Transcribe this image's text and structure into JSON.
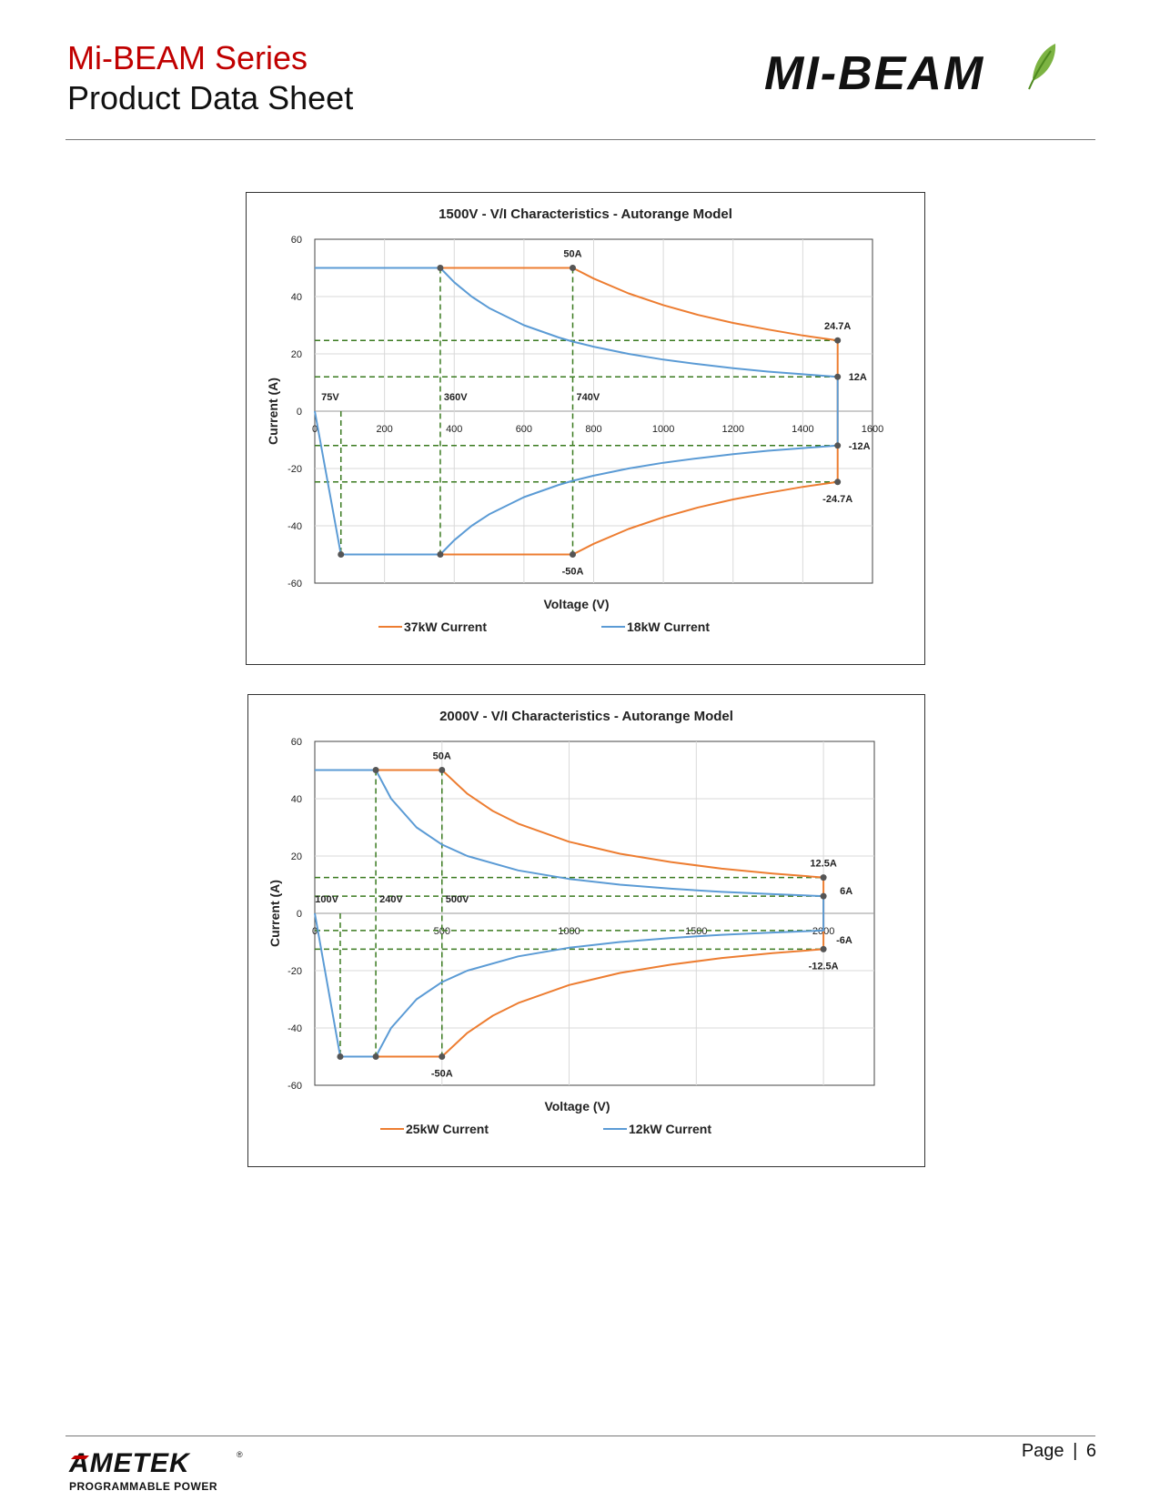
{
  "header": {
    "series_title": "Mi-BEAM Series",
    "document_title": "Product Data Sheet",
    "logo_text": "MI-BEAM"
  },
  "footer": {
    "brand": "AMETEK",
    "brand_sub": "PROGRAMMABLE POWER",
    "registered_mark": "®",
    "page_label": "Page",
    "separator": "|",
    "page_number": "6"
  },
  "colors": {
    "header_red": "#c00000",
    "orange_series": "#ed7d31",
    "blue_series": "#5b9bd5",
    "guide_green": "#3a7a1f",
    "logo_leaf": "#7cb342"
  },
  "chart_data": [
    {
      "type": "line",
      "title": "1500V - V/I Characteristics - Autorange Model",
      "xlabel": "Voltage (V)",
      "ylabel": "Current (A)",
      "xlim": [
        0,
        1600
      ],
      "ylim": [
        -60,
        60
      ],
      "x_ticks": [
        "0",
        "200",
        "400",
        "600",
        "800",
        "1000",
        "1200",
        "1400",
        "1600"
      ],
      "y_ticks": [
        "60",
        "40",
        "20",
        "0",
        "-20",
        "-40",
        "-60"
      ],
      "x_tick_values": [
        0,
        200,
        400,
        600,
        800,
        1000,
        1200,
        1400,
        1600
      ],
      "y_tick_values": [
        60,
        40,
        20,
        0,
        -20,
        -40,
        -60
      ],
      "grid": true,
      "legend_position": "bottom",
      "series": [
        {
          "name": "37kW Current",
          "color": "#ed7d31",
          "points": [
            [
              360,
              50
            ],
            [
              740,
              50
            ],
            [
              800,
              46.3
            ],
            [
              900,
              41.1
            ],
            [
              1000,
              37
            ],
            [
              1100,
              33.6
            ],
            [
              1200,
              30.8
            ],
            [
              1300,
              28.5
            ],
            [
              1400,
              26.4
            ],
            [
              1500,
              24.7
            ],
            [
              1500,
              -24.7
            ],
            [
              1400,
              -26.4
            ],
            [
              1300,
              -28.5
            ],
            [
              1200,
              -30.8
            ],
            [
              1100,
              -33.6
            ],
            [
              1000,
              -37
            ],
            [
              900,
              -41.1
            ],
            [
              800,
              -46.3
            ],
            [
              740,
              -50
            ],
            [
              360,
              -50
            ]
          ]
        },
        {
          "name": "18kW Current",
          "color": "#5b9bd5",
          "points": [
            [
              0,
              50
            ],
            [
              360,
              50
            ],
            [
              400,
              45
            ],
            [
              450,
              40
            ],
            [
              500,
              36
            ],
            [
              600,
              30
            ],
            [
              700,
              25.7
            ],
            [
              740,
              24.3
            ],
            [
              800,
              22.5
            ],
            [
              900,
              20
            ],
            [
              1000,
              18
            ],
            [
              1100,
              16.4
            ],
            [
              1200,
              15
            ],
            [
              1300,
              13.8
            ],
            [
              1400,
              12.9
            ],
            [
              1500,
              12
            ],
            [
              1500,
              -12
            ],
            [
              1400,
              -12.9
            ],
            [
              1300,
              -13.8
            ],
            [
              1200,
              -15
            ],
            [
              1100,
              -16.4
            ],
            [
              1000,
              -18
            ],
            [
              900,
              -20
            ],
            [
              800,
              -22.5
            ],
            [
              740,
              -24.3
            ],
            [
              700,
              -25.7
            ],
            [
              600,
              -30
            ],
            [
              500,
              -36
            ],
            [
              450,
              -40
            ],
            [
              400,
              -45
            ],
            [
              360,
              -50
            ],
            [
              75,
              -50
            ],
            [
              0,
              0
            ]
          ]
        }
      ],
      "guides_h": [
        24.7,
        12,
        -12,
        -24.7
      ],
      "guides_v": [
        {
          "x": 75,
          "from": -50,
          "to": 0
        },
        {
          "x": 360,
          "from": -50,
          "to": 50
        },
        {
          "x": 740,
          "from": -50,
          "to": 50
        }
      ],
      "markers": [
        [
          360,
          50
        ],
        [
          740,
          50
        ],
        [
          1500,
          24.7
        ],
        [
          1500,
          12
        ],
        [
          1500,
          -12
        ],
        [
          1500,
          -24.7
        ],
        [
          740,
          -50
        ],
        [
          360,
          -50
        ],
        [
          75,
          -50
        ]
      ],
      "annotations": [
        {
          "text": "50A",
          "x": 740,
          "y": 50,
          "pos": "above"
        },
        {
          "text": "24.7A",
          "x": 1500,
          "y": 24.7,
          "pos": "above"
        },
        {
          "text": "12A",
          "x": 1500,
          "y": 12,
          "pos": "right"
        },
        {
          "text": "-12A",
          "x": 1500,
          "y": -12,
          "pos": "right"
        },
        {
          "text": "-24.7A",
          "x": 1500,
          "y": -24.7,
          "pos": "below"
        },
        {
          "text": "-50A",
          "x": 740,
          "y": -50,
          "pos": "below"
        },
        {
          "text": "75V",
          "x": 75,
          "y": 0,
          "pos": "above-left"
        },
        {
          "text": "360V",
          "x": 360,
          "y": 0,
          "pos": "above-right"
        },
        {
          "text": "740V",
          "x": 740,
          "y": 0,
          "pos": "above-right"
        }
      ],
      "x_tick_labels_inside": true
    },
    {
      "type": "line",
      "title": "2000V - V/I Characteristics - Autorange Model",
      "xlabel": "Voltage (V)",
      "ylabel": "Current (A)",
      "xlim": [
        0,
        2200
      ],
      "ylim": [
        -60,
        60
      ],
      "x_ticks": [
        "0",
        "500",
        "1000",
        "1500",
        "2000"
      ],
      "y_ticks": [
        "60",
        "40",
        "20",
        "0",
        "-20",
        "-40",
        "-60"
      ],
      "x_tick_values": [
        0,
        500,
        1000,
        1500,
        2000
      ],
      "y_tick_values": [
        60,
        40,
        20,
        0,
        -20,
        -40,
        -60
      ],
      "x_grid_values": [
        500,
        1000,
        1500,
        2000
      ],
      "grid": true,
      "legend_position": "bottom",
      "series": [
        {
          "name": "25kW Current",
          "color": "#ed7d31",
          "points": [
            [
              240,
              50
            ],
            [
              500,
              50
            ],
            [
              600,
              41.7
            ],
            [
              700,
              35.7
            ],
            [
              800,
              31.3
            ],
            [
              1000,
              25
            ],
            [
              1200,
              20.8
            ],
            [
              1400,
              17.9
            ],
            [
              1600,
              15.6
            ],
            [
              1800,
              13.9
            ],
            [
              2000,
              12.5
            ],
            [
              2000,
              -12.5
            ],
            [
              1800,
              -13.9
            ],
            [
              1600,
              -15.6
            ],
            [
              1400,
              -17.9
            ],
            [
              1200,
              -20.8
            ],
            [
              1000,
              -25
            ],
            [
              800,
              -31.3
            ],
            [
              700,
              -35.7
            ],
            [
              600,
              -41.7
            ],
            [
              500,
              -50
            ],
            [
              240,
              -50
            ]
          ]
        },
        {
          "name": "12kW Current",
          "color": "#5b9bd5",
          "points": [
            [
              0,
              50
            ],
            [
              240,
              50
            ],
            [
              300,
              40
            ],
            [
              400,
              30
            ],
            [
              500,
              24
            ],
            [
              600,
              20
            ],
            [
              800,
              15
            ],
            [
              1000,
              12
            ],
            [
              1200,
              10
            ],
            [
              1400,
              8.6
            ],
            [
              1600,
              7.5
            ],
            [
              1800,
              6.7
            ],
            [
              2000,
              6
            ],
            [
              2000,
              -6
            ],
            [
              1800,
              -6.7
            ],
            [
              1600,
              -7.5
            ],
            [
              1400,
              -8.6
            ],
            [
              1200,
              -10
            ],
            [
              1000,
              -12
            ],
            [
              800,
              -15
            ],
            [
              600,
              -20
            ],
            [
              500,
              -24
            ],
            [
              400,
              -30
            ],
            [
              300,
              -40
            ],
            [
              240,
              -50
            ],
            [
              100,
              -50
            ],
            [
              0,
              0
            ]
          ]
        }
      ],
      "guides_h": [
        12.5,
        6,
        -6,
        -12.5
      ],
      "guides_v": [
        {
          "x": 100,
          "from": -50,
          "to": 0
        },
        {
          "x": 240,
          "from": -50,
          "to": 50
        },
        {
          "x": 500,
          "from": -50,
          "to": 50
        }
      ],
      "markers": [
        [
          240,
          50
        ],
        [
          500,
          50
        ],
        [
          2000,
          12.5
        ],
        [
          2000,
          6
        ],
        [
          2000,
          -12.5
        ],
        [
          500,
          -50
        ],
        [
          240,
          -50
        ],
        [
          100,
          -50
        ]
      ],
      "annotations": [
        {
          "text": "50A",
          "x": 500,
          "y": 50,
          "pos": "above"
        },
        {
          "text": "12.5A",
          "x": 2000,
          "y": 12.5,
          "pos": "above"
        },
        {
          "text": "6A",
          "x": 2000,
          "y": 6,
          "pos": "right-up"
        },
        {
          "text": "-6A",
          "x": 2000,
          "y": -6,
          "pos": "right-down"
        },
        {
          "text": "-12.5A",
          "x": 2000,
          "y": -12.5,
          "pos": "below"
        },
        {
          "text": "-50A",
          "x": 500,
          "y": -50,
          "pos": "below"
        },
        {
          "text": "100V",
          "x": 100,
          "y": 0,
          "pos": "above-left"
        },
        {
          "text": "240V",
          "x": 240,
          "y": 0,
          "pos": "above-right"
        },
        {
          "text": "500V",
          "x": 500,
          "y": 0,
          "pos": "above-right"
        }
      ],
      "x_tick_labels_inside": true
    }
  ]
}
